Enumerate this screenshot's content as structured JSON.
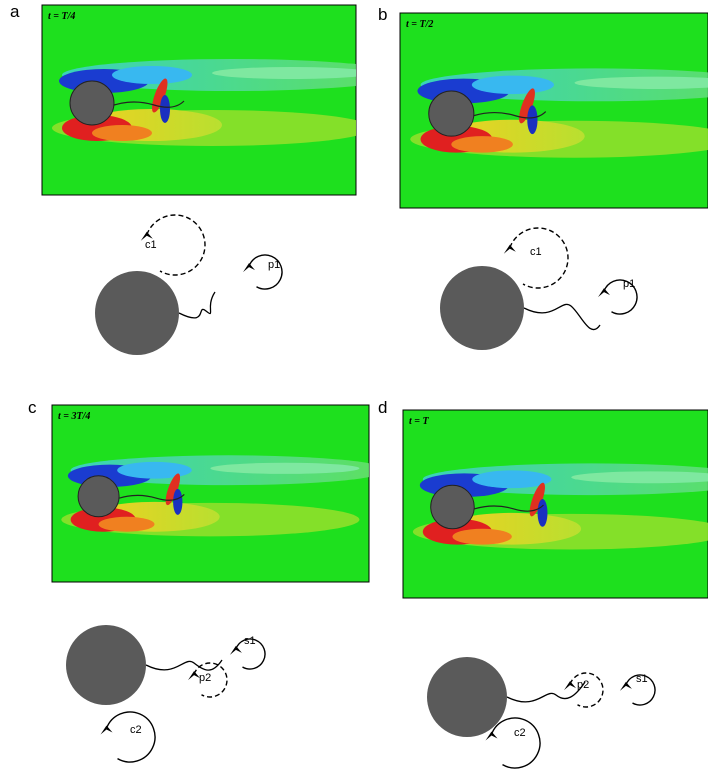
{
  "panels": [
    {
      "letter": "a",
      "time": "t = T/4",
      "labels": [
        "c1",
        "p1"
      ]
    },
    {
      "letter": "b",
      "time": "t = T/2",
      "labels": [
        "c1",
        "p1"
      ]
    },
    {
      "letter": "c",
      "time": "t = 3T/4",
      "labels": [
        "c2",
        "p2",
        "s1"
      ]
    },
    {
      "letter": "d",
      "time": "t = T",
      "labels": [
        "c2",
        "p2",
        "s1"
      ]
    }
  ]
}
